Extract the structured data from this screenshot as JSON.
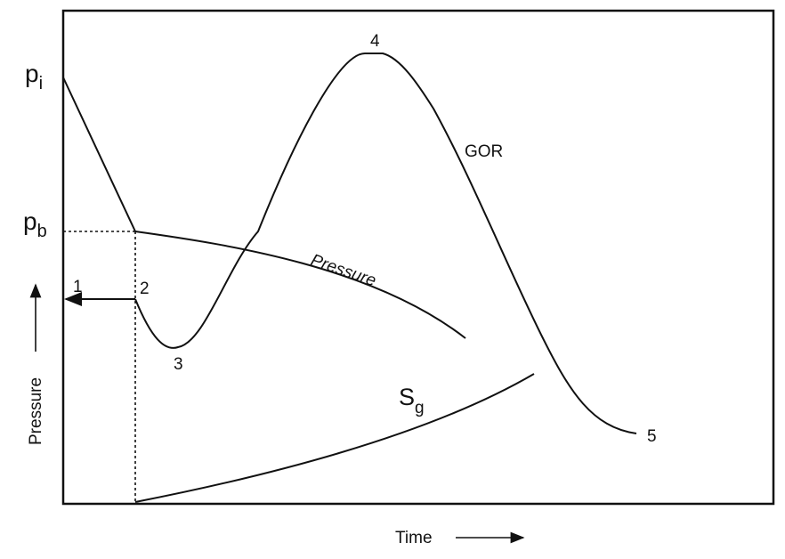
{
  "axes": {
    "x_label": "Time",
    "y_label": "Pressure"
  },
  "y_markers": [
    {
      "symbol": "p",
      "subscript": "i"
    },
    {
      "symbol": "p",
      "subscript": "b"
    }
  ],
  "curves": [
    {
      "label": "GOR"
    },
    {
      "label": "Pressure"
    },
    {
      "label": {
        "symbol": "S",
        "subscript": "g"
      }
    }
  ],
  "points": [
    "1",
    "2",
    "3",
    "4",
    "5"
  ]
}
